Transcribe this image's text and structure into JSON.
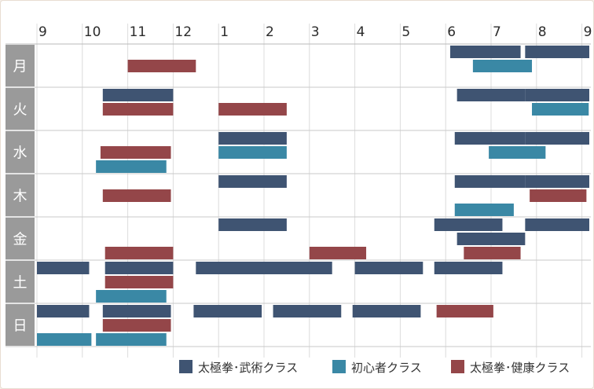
{
  "chart_data": {
    "type": "timeline",
    "hour_ticks": [
      "9",
      "10",
      "11",
      "12",
      "1",
      "2",
      "3",
      "4",
      "5",
      "6",
      "7",
      "8",
      "9"
    ],
    "days": [
      "月",
      "火",
      "水",
      "木",
      "金",
      "土",
      "日"
    ],
    "series": [
      {
        "key": "bujutsu",
        "name": "太極拳･武術クラス",
        "color": "#3f5472"
      },
      {
        "key": "beginner",
        "name": "初心者クラス",
        "color": "#3a88a5"
      },
      {
        "key": "health",
        "name": "太極拳･健康クラス",
        "color": "#944649"
      }
    ],
    "sessions": [
      {
        "day": 0,
        "series": "bujutsu",
        "start": 18.1,
        "end": 19.65
      },
      {
        "day": 0,
        "series": "bujutsu",
        "start": 19.75,
        "end": 21.2
      },
      {
        "day": 0,
        "series": "health",
        "start": 11.0,
        "end": 12.5
      },
      {
        "day": 0,
        "series": "beginner",
        "start": 18.6,
        "end": 19.9
      },
      {
        "day": 1,
        "series": "bujutsu",
        "start": 10.45,
        "end": 12.0
      },
      {
        "day": 1,
        "series": "bujutsu",
        "start": 18.25,
        "end": 19.75
      },
      {
        "day": 1,
        "series": "bujutsu",
        "start": 19.75,
        "end": 21.2
      },
      {
        "day": 1,
        "series": "health",
        "start": 10.45,
        "end": 12.0
      },
      {
        "day": 1,
        "series": "health",
        "start": 13.0,
        "end": 14.5
      },
      {
        "day": 1,
        "series": "beginner",
        "start": 19.9,
        "end": 21.15
      },
      {
        "day": 2,
        "series": "bujutsu",
        "start": 13.0,
        "end": 14.5
      },
      {
        "day": 2,
        "series": "bujutsu",
        "start": 18.2,
        "end": 19.75
      },
      {
        "day": 2,
        "series": "bujutsu",
        "start": 19.75,
        "end": 21.2
      },
      {
        "day": 2,
        "series": "health",
        "start": 10.4,
        "end": 11.95
      },
      {
        "day": 2,
        "series": "beginner",
        "start": 10.3,
        "end": 11.85
      },
      {
        "day": 2,
        "series": "beginner",
        "start": 13.0,
        "end": 14.5
      },
      {
        "day": 2,
        "series": "beginner",
        "start": 18.95,
        "end": 20.2
      },
      {
        "day": 3,
        "series": "bujutsu",
        "start": 13.0,
        "end": 14.5
      },
      {
        "day": 3,
        "series": "bujutsu",
        "start": 18.2,
        "end": 19.75
      },
      {
        "day": 3,
        "series": "bujutsu",
        "start": 19.75,
        "end": 21.2
      },
      {
        "day": 3,
        "series": "health",
        "start": 10.45,
        "end": 11.95
      },
      {
        "day": 3,
        "series": "health",
        "start": 19.85,
        "end": 21.1
      },
      {
        "day": 3,
        "series": "beginner",
        "start": 18.2,
        "end": 19.5
      },
      {
        "day": 4,
        "series": "bujutsu",
        "start": 13.0,
        "end": 14.5
      },
      {
        "day": 4,
        "series": "bujutsu",
        "start": 17.75,
        "end": 19.25
      },
      {
        "day": 4,
        "series": "bujutsu",
        "start": 19.75,
        "end": 21.2
      },
      {
        "day": 4,
        "series": "bujutsu",
        "start": 18.25,
        "end": 19.75
      },
      {
        "day": 4,
        "series": "health",
        "start": 10.5,
        "end": 12.0
      },
      {
        "day": 4,
        "series": "health",
        "start": 15.0,
        "end": 16.25
      },
      {
        "day": 4,
        "series": "health",
        "start": 18.4,
        "end": 19.65
      },
      {
        "day": 4,
        "series": "beginner",
        "start": 10.3,
        "end": 11.85
      },
      {
        "day": 5,
        "series": "bujutsu",
        "start": 9.0,
        "end": 10.15
      },
      {
        "day": 5,
        "series": "bujutsu",
        "start": 10.5,
        "end": 12.0
      },
      {
        "day": 5,
        "series": "bujutsu",
        "start": 12.5,
        "end": 14.0
      },
      {
        "day": 5,
        "series": "bujutsu",
        "start": 14.0,
        "end": 15.5
      },
      {
        "day": 5,
        "series": "bujutsu",
        "start": 16.0,
        "end": 17.5
      },
      {
        "day": 5,
        "series": "bujutsu",
        "start": 17.75,
        "end": 19.25
      },
      {
        "day": 5,
        "series": "health",
        "start": 10.5,
        "end": 12.0
      },
      {
        "day": 5,
        "series": "beginner",
        "start": 10.3,
        "end": 11.85
      },
      {
        "day": 6,
        "series": "bujutsu",
        "start": 9.0,
        "end": 10.15
      },
      {
        "day": 6,
        "series": "bujutsu",
        "start": 10.45,
        "end": 11.95
      },
      {
        "day": 6,
        "series": "bujutsu",
        "start": 12.45,
        "end": 13.95
      },
      {
        "day": 6,
        "series": "bujutsu",
        "start": 14.2,
        "end": 15.7
      },
      {
        "day": 6,
        "series": "bujutsu",
        "start": 15.95,
        "end": 17.45
      },
      {
        "day": 6,
        "series": "health",
        "start": 10.45,
        "end": 11.95
      },
      {
        "day": 6,
        "series": "health",
        "start": 17.8,
        "end": 19.05
      },
      {
        "day": 6,
        "series": "beginner",
        "start": 9.0,
        "end": 10.2
      },
      {
        "day": 6,
        "series": "beginner",
        "start": 10.3,
        "end": 11.85
      }
    ]
  }
}
